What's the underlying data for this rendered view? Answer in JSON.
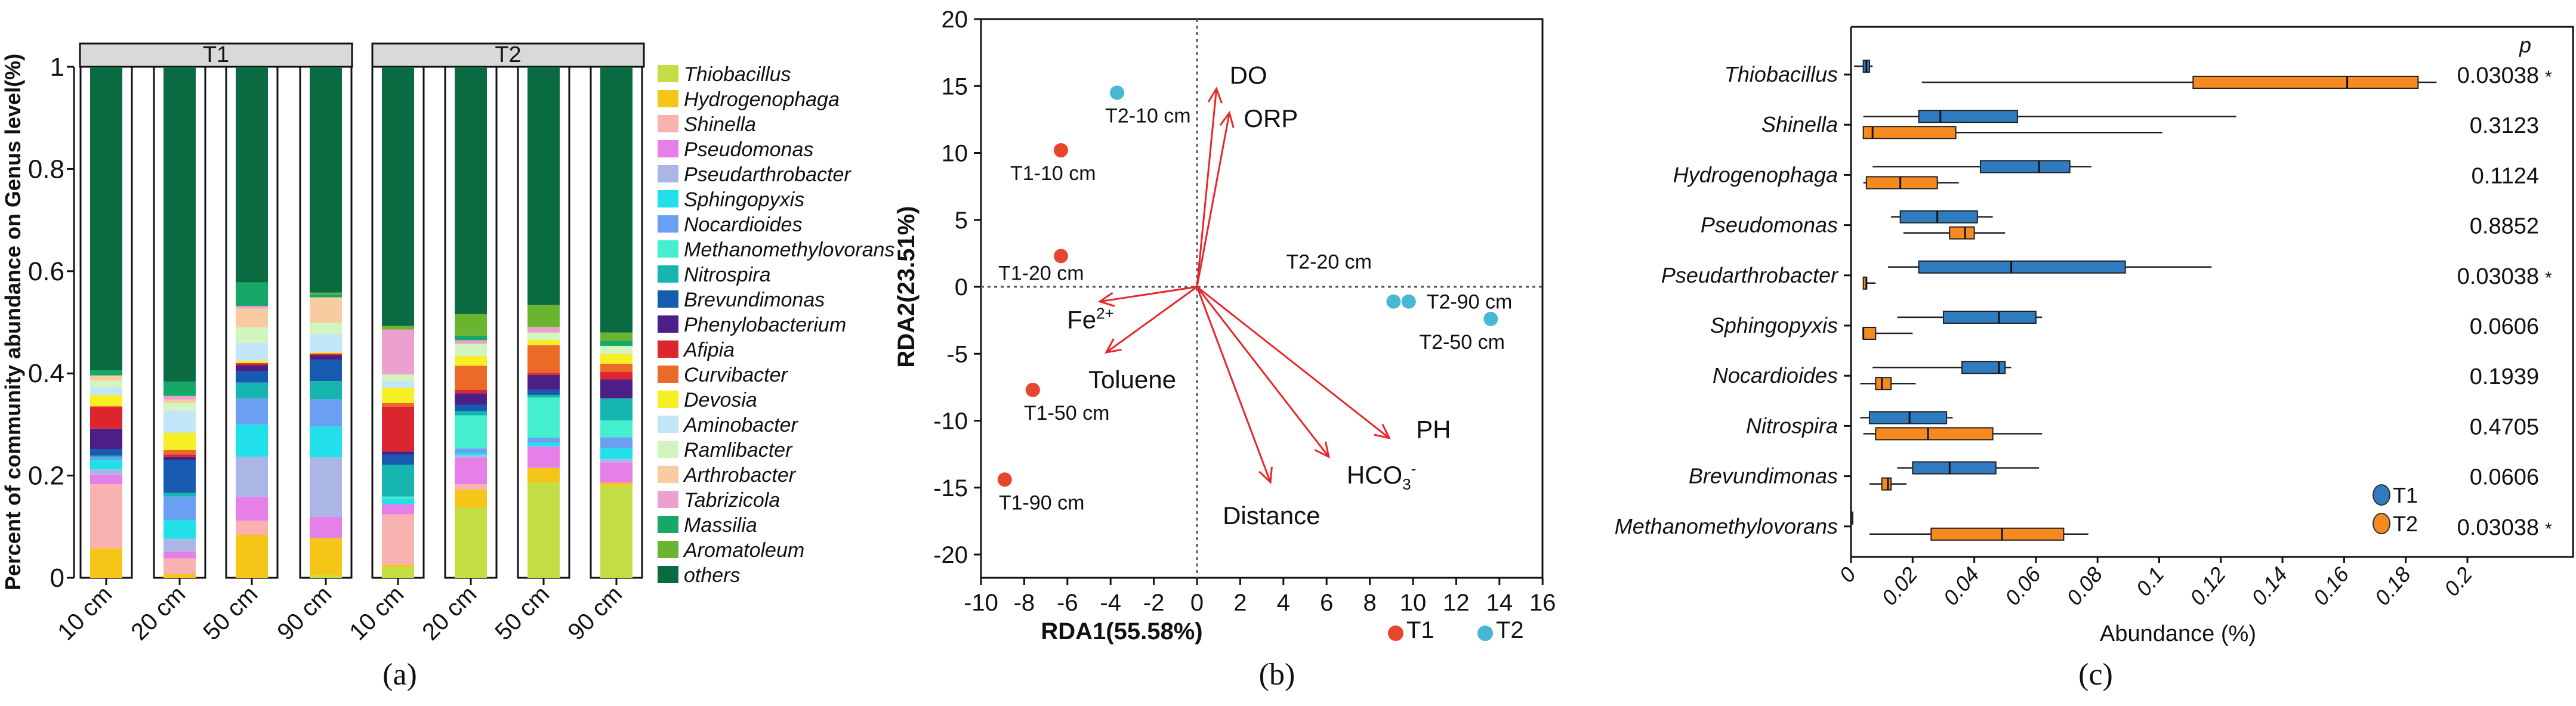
{
  "chart_data": [
    {
      "type": "bar",
      "stacked": true,
      "panel_label": "(a)",
      "ylabel": "Percent of community abundance on Genus level(%)",
      "ylim": [
        0,
        1
      ],
      "yticks": [
        "0",
        "0.2",
        "0.4",
        "0.6",
        "0.8",
        "1"
      ],
      "facets": [
        "T1",
        "T2"
      ],
      "categories": [
        "10 cm",
        "20 cm",
        "50 cm",
        "90 cm"
      ],
      "legend_position": "right",
      "genera": [
        "Thiobacillus",
        "Hydrogenophaga",
        "Shinella",
        "Pseudomonas",
        "Pseudarthrobacter",
        "Sphingopyxis",
        "Nocardioides",
        "Methanomethylovorans",
        "Nitrospira",
        "Brevundimonas",
        "Phenylobacterium",
        "Afipia",
        "Curvibacter",
        "Devosia",
        "Aminobacter",
        "Ramlibacter",
        "Arthrobacter",
        "Tabrizicola",
        "Massilia",
        "Aromatoleum",
        "others"
      ],
      "colors": [
        "#c3de44",
        "#f5c518",
        "#f8b3b0",
        "#e67fe8",
        "#abb6e6",
        "#22e0ea",
        "#6b9ff2",
        "#44efcf",
        "#17b5b0",
        "#175bb0",
        "#4c1f86",
        "#dd2530",
        "#ec6a27",
        "#f6ef24",
        "#c2e6f7",
        "#d2f5bf",
        "#f8cba0",
        "#eba0cd",
        "#16a866",
        "#6ab530",
        "#0a6b42"
      ],
      "samples": [
        {
          "facet": "T1",
          "depth": "10 cm",
          "values": [
            0,
            0.058,
            0.125,
            0.018,
            0.011,
            0.019,
            0.005,
            0,
            0.003,
            0.013,
            0.04,
            0.042,
            0.002,
            0.022,
            0.015,
            0.013,
            0.01,
            0,
            0.01,
            0,
            0.594
          ]
        },
        {
          "facet": "T1",
          "depth": "20 cm",
          "values": [
            0,
            0.007,
            0.031,
            0.013,
            0.025,
            0.037,
            0.046,
            0,
            0.007,
            0.065,
            0.006,
            0.004,
            0.009,
            0.034,
            0.043,
            0.015,
            0.007,
            0.007,
            0.028,
            0,
            0.616
          ]
        },
        {
          "facet": "T1",
          "depth": "50 cm",
          "values": [
            0,
            0.084,
            0.028,
            0.046,
            0.079,
            0.063,
            0.051,
            0,
            0.031,
            0.022,
            0.012,
            0.004,
            0,
            0.005,
            0.035,
            0.03,
            0.037,
            0.005,
            0.046,
            0,
            0.422
          ]
        },
        {
          "facet": "T1",
          "depth": "90 cm",
          "values": [
            0.005,
            0.073,
            0,
            0.041,
            0.117,
            0.06,
            0.054,
            0,
            0.035,
            0.042,
            0.009,
            0.003,
            0,
            0.003,
            0.035,
            0.022,
            0.05,
            0,
            0.006,
            0.003,
            0.442
          ]
        },
        {
          "facet": "T2",
          "depth": "10 cm",
          "values": [
            0.021,
            0.004,
            0.099,
            0.02,
            0,
            0.01,
            0,
            0.005,
            0.062,
            0.02,
            0.006,
            0.088,
            0.007,
            0.03,
            0.013,
            0.013,
            0,
            0.088,
            0,
            0.007,
            0.507
          ]
        },
        {
          "facet": "T2",
          "depth": "20 cm",
          "values": [
            0.137,
            0.035,
            0.011,
            0.052,
            0.005,
            0.004,
            0.009,
            0.065,
            0.008,
            0.013,
            0.022,
            0.007,
            0.047,
            0.019,
            0,
            0.024,
            0,
            0.007,
            0.009,
            0.042,
            0.484
          ]
        },
        {
          "facet": "T2",
          "depth": "50 cm",
          "values": [
            0.187,
            0.028,
            0,
            0.042,
            0,
            0.007,
            0.01,
            0.079,
            0.005,
            0.01,
            0.029,
            0.004,
            0.054,
            0.01,
            0,
            0.015,
            0,
            0.011,
            0,
            0.043,
            0.466
          ]
        },
        {
          "facet": "T2",
          "depth": "90 cm",
          "values": [
            0.18,
            0.006,
            0,
            0.04,
            0.006,
            0.022,
            0.021,
            0.033,
            0.043,
            0,
            0.037,
            0.015,
            0.016,
            0.019,
            0,
            0.016,
            0,
            0,
            0.01,
            0.016,
            0.52
          ]
        }
      ]
    },
    {
      "type": "scatter",
      "subtype": "RDA biplot",
      "panel_label": "(b)",
      "xlabel": "RDA1(55.58%)",
      "ylabel": "RDA2(23.51%)",
      "xlim": [
        -10,
        16
      ],
      "ylim": [
        -21.7,
        20
      ],
      "xticks": [
        "-10",
        "-8",
        "-6",
        "-4",
        "-2",
        "0",
        "2",
        "4",
        "6",
        "8",
        "10",
        "12",
        "14",
        "16"
      ],
      "yticks": [
        "20",
        "15",
        "10",
        "5",
        "0",
        "-5",
        "-10",
        "-15",
        "-20"
      ],
      "legend": [
        {
          "name": "T1",
          "color": "#e8462c"
        },
        {
          "name": "T2",
          "color": "#46b8d4"
        }
      ],
      "points": [
        {
          "label": "T1-10 cm",
          "group": "T1",
          "x": -6.3,
          "y": 10.2
        },
        {
          "label": "T1-20 cm",
          "group": "T1",
          "x": -6.3,
          "y": 2.3
        },
        {
          "label": "T1-50 cm",
          "group": "T1",
          "x": -7.6,
          "y": -7.7
        },
        {
          "label": "T1-90 cm",
          "group": "T1",
          "x": -8.9,
          "y": -14.4
        },
        {
          "label": "T2-10 cm",
          "group": "T2",
          "x": -3.7,
          "y": 14.5
        },
        {
          "label": "T2-20 cm",
          "group": "T2",
          "x": 9.1,
          "y": -1.1
        },
        {
          "label": "T2-90 cm",
          "group": "T2",
          "x": 9.8,
          "y": -1.1
        },
        {
          "label": "T2-50 cm",
          "group": "T2",
          "x": 13.6,
          "y": -2.4
        }
      ],
      "arrows": [
        {
          "label": "DO",
          "x": 0.9,
          "y": 14.8
        },
        {
          "label": "ORP",
          "x": 1.5,
          "y": 13.0
        },
        {
          "label": "Fe",
          "sup": "2+",
          "x": -4.5,
          "y": -1.1
        },
        {
          "label": "Toluene",
          "x": -4.2,
          "y": -4.9
        },
        {
          "label": "PH",
          "x": 8.9,
          "y": -11.3
        },
        {
          "label": "HCO",
          "sub": "3",
          "sup": "-",
          "x": 6.1,
          "y": -12.7
        },
        {
          "label": "Distance",
          "x": 3.4,
          "y": -14.6
        }
      ],
      "arrow_color": "#e8262a"
    },
    {
      "type": "boxplot",
      "orientation": "horizontal",
      "panel_label": "(c)",
      "xlabel": "Abundance (%)",
      "xlim": [
        0,
        0.2
      ],
      "xticks": [
        "0",
        "0.02",
        "0.04",
        "0.06",
        "0.08",
        "0.1",
        "0.12",
        "0.14",
        "0.16",
        "0.18",
        "0.2"
      ],
      "p_header": "p",
      "legend": [
        {
          "name": "T1",
          "color": "#2e7bbf"
        },
        {
          "name": "T2",
          "color": "#f68a1e"
        }
      ],
      "rows": [
        {
          "genus": "Thiobacillus",
          "p": "0.03038",
          "sig": "*",
          "T1": [
            0.001,
            0.004,
            0.005,
            0.006,
            0.007
          ],
          "T2": [
            0.023,
            0.111,
            0.161,
            0.184,
            0.19
          ]
        },
        {
          "genus": "Shinella",
          "p": "0.3123",
          "sig": "",
          "T1": [
            0.004,
            0.022,
            0.029,
            0.054,
            0.125
          ],
          "T2": [
            0.004,
            0.004,
            0.007,
            0.034,
            0.101
          ]
        },
        {
          "genus": "Hydrogenophaga",
          "p": "0.1124",
          "sig": "",
          "T1": [
            0.007,
            0.042,
            0.061,
            0.071,
            0.078
          ],
          "T2": [
            0.004,
            0.005,
            0.016,
            0.028,
            0.035
          ]
        },
        {
          "genus": "Pseudomonas",
          "p": "0.8852",
          "sig": "",
          "T1": [
            0.013,
            0.016,
            0.028,
            0.041,
            0.046
          ],
          "T2": [
            0.017,
            0.032,
            0.037,
            0.04,
            0.05
          ]
        },
        {
          "genus": "Pseudarthrobacter",
          "p": "0.03038",
          "sig": "*",
          "T1": [
            0.012,
            0.022,
            0.052,
            0.089,
            0.117
          ],
          "T2": [
            0.004,
            0.004,
            0.005,
            0.005,
            0.008
          ]
        },
        {
          "genus": "Sphingopyxis",
          "p": "0.0606",
          "sig": "",
          "T1": [
            0.015,
            0.03,
            0.048,
            0.06,
            0.062
          ],
          "T2": [
            0.004,
            0.004,
            0.004,
            0.008,
            0.02
          ]
        },
        {
          "genus": "Nocardioides",
          "p": "0.1939",
          "sig": "",
          "T1": [
            0.007,
            0.036,
            0.048,
            0.05,
            0.052
          ],
          "T2": [
            0.003,
            0.008,
            0.01,
            0.013,
            0.021
          ]
        },
        {
          "genus": "Nitrospira",
          "p": "0.4705",
          "sig": "",
          "T1": [
            0.003,
            0.006,
            0.019,
            0.031,
            0.033
          ],
          "T2": [
            0.004,
            0.008,
            0.025,
            0.046,
            0.062
          ]
        },
        {
          "genus": "Brevundimonas",
          "p": "0.0606",
          "sig": "",
          "T1": [
            0.015,
            0.02,
            0.032,
            0.047,
            0.061
          ],
          "T2": [
            0.006,
            0.01,
            0.012,
            0.013,
            0.018
          ]
        },
        {
          "genus": "Methanomethylovorans",
          "p": "0.03038",
          "sig": "*",
          "T1": [
            0,
            0,
            0,
            0,
            0.0005
          ],
          "T2": [
            0.006,
            0.026,
            0.049,
            0.069,
            0.077
          ]
        }
      ]
    }
  ]
}
